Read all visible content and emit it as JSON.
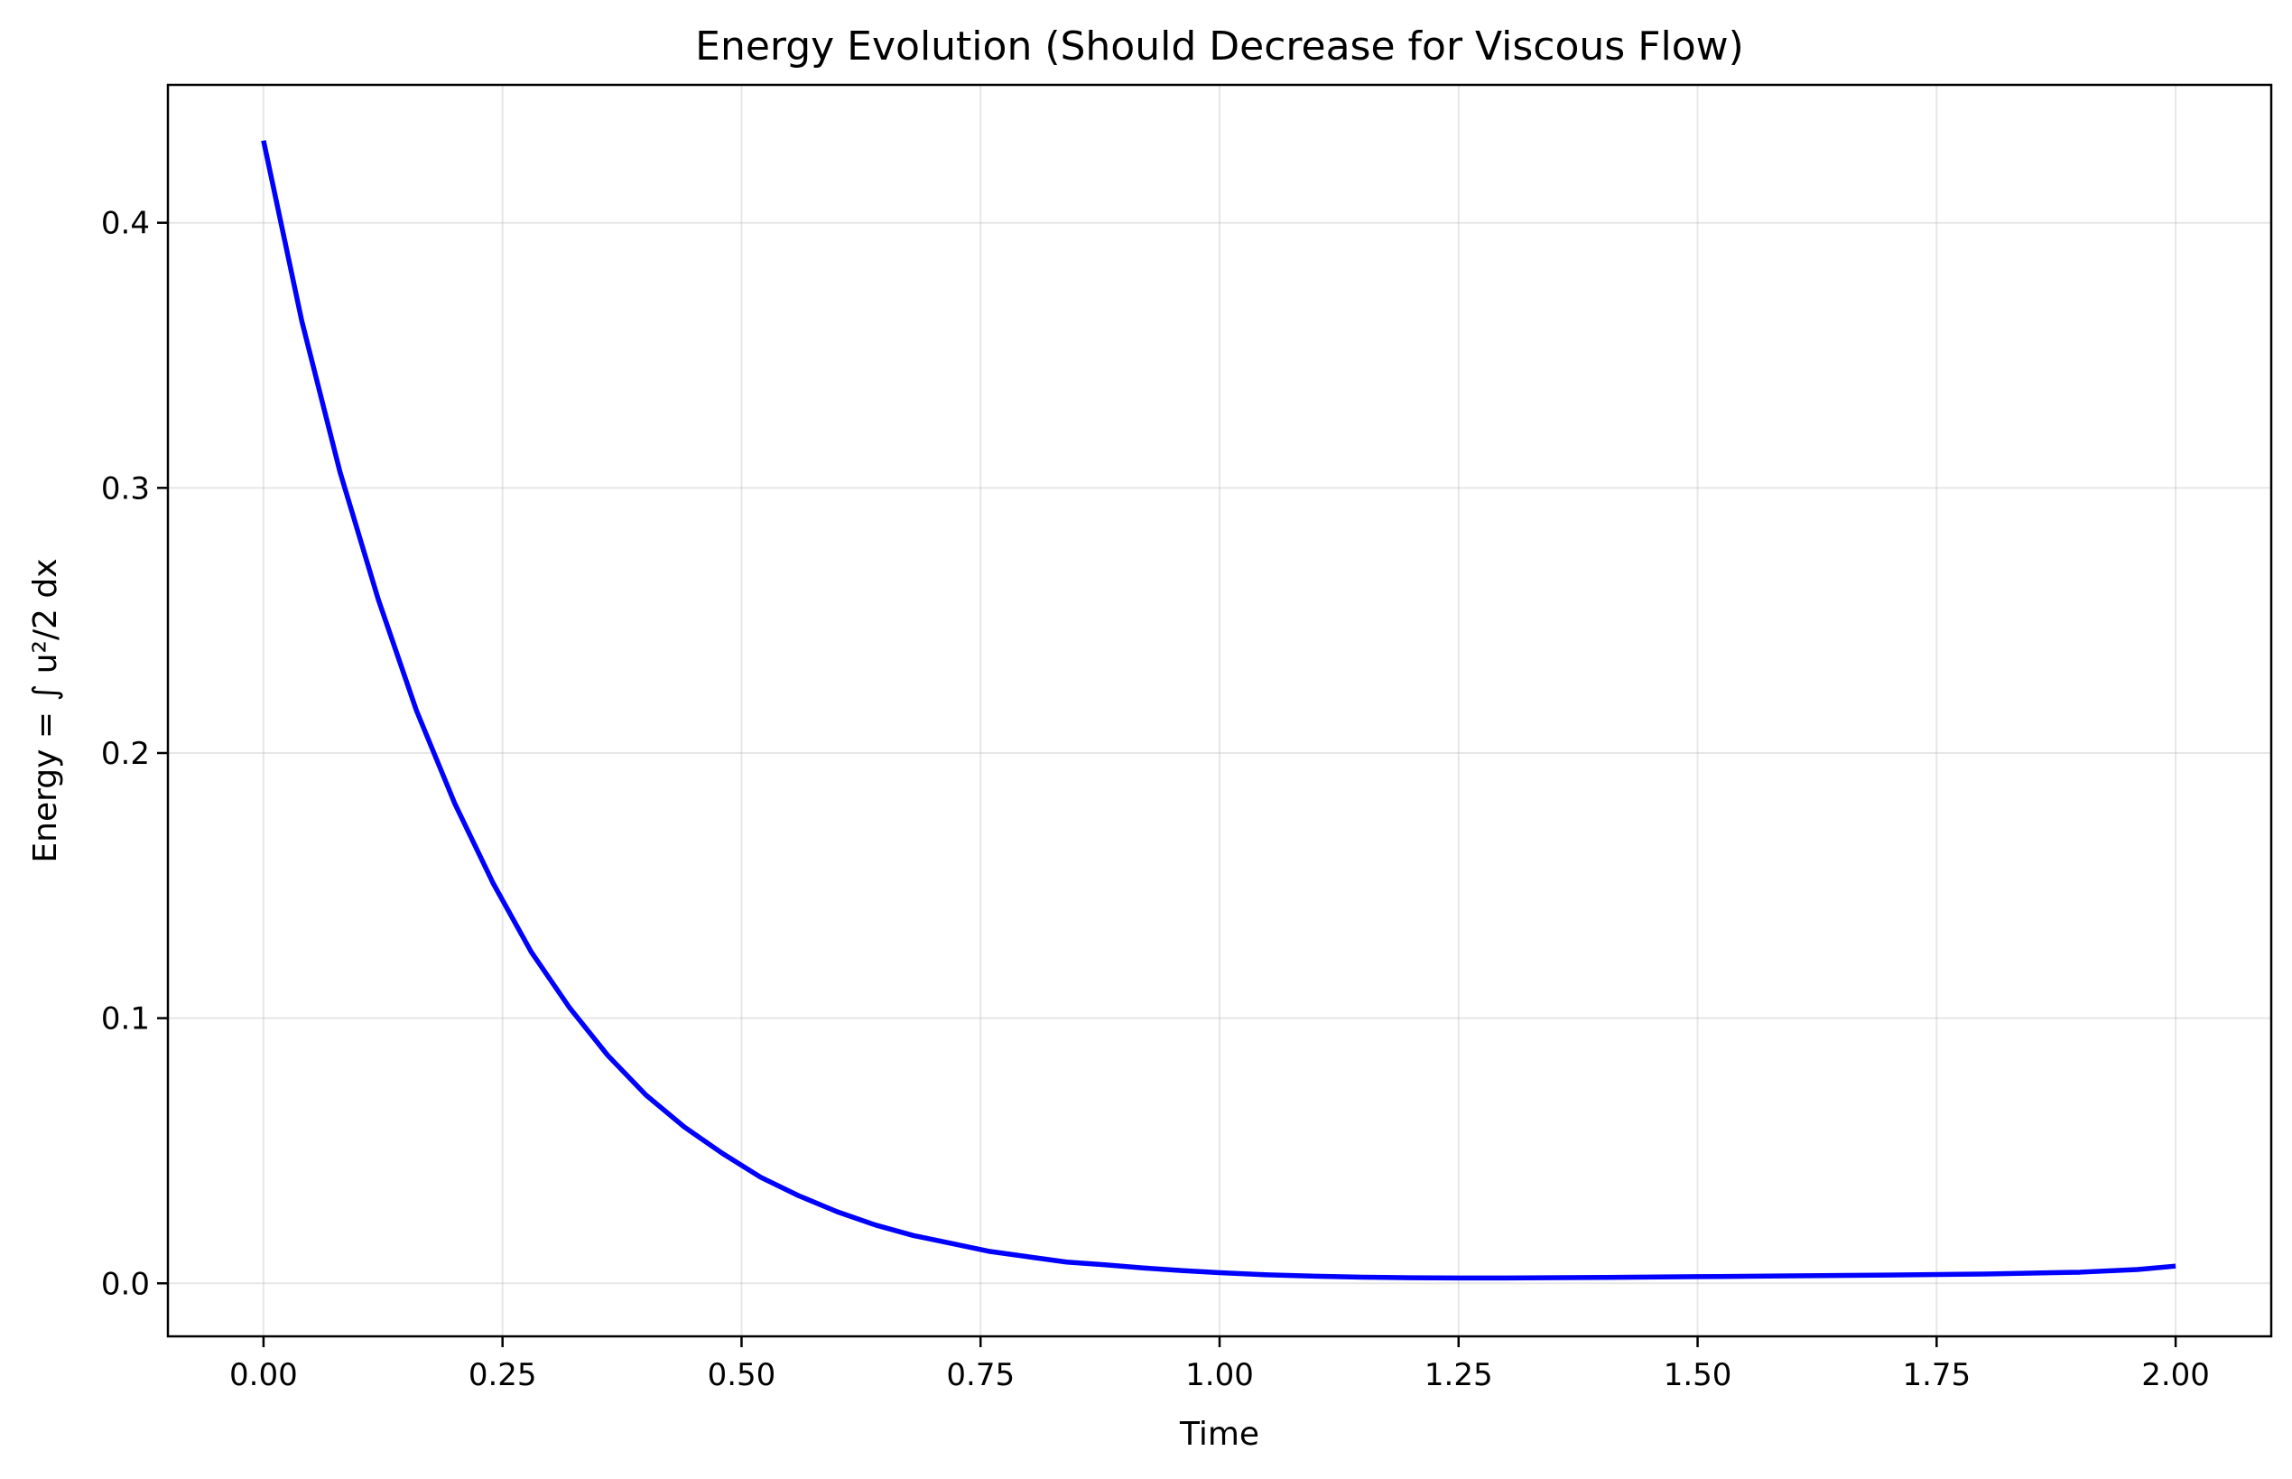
{
  "chart_data": {
    "type": "line",
    "title": "Energy Evolution (Should Decrease for Viscous Flow)",
    "xlabel": "Time",
    "ylabel": "Energy = ∫ u²/2 dx",
    "xlim": [
      -0.1,
      2.1
    ],
    "ylim": [
      -0.02,
      0.452
    ],
    "xticks": [
      0.0,
      0.25,
      0.5,
      0.75,
      1.0,
      1.25,
      1.5,
      1.75,
      2.0
    ],
    "xtick_labels": [
      "0.00",
      "0.25",
      "0.50",
      "0.75",
      "1.00",
      "1.25",
      "1.50",
      "1.75",
      "2.00"
    ],
    "yticks": [
      0.0,
      0.1,
      0.2,
      0.3,
      0.4
    ],
    "ytick_labels": [
      "0.0",
      "0.1",
      "0.2",
      "0.3",
      "0.4"
    ],
    "grid": true,
    "legend": false,
    "series": [
      {
        "color": "#0000ff",
        "x": [
          0.0,
          0.04,
          0.08,
          0.12,
          0.16,
          0.2,
          0.24,
          0.28,
          0.32,
          0.36,
          0.4,
          0.44,
          0.48,
          0.52,
          0.56,
          0.6,
          0.64,
          0.68,
          0.72,
          0.76,
          0.8,
          0.84,
          0.88,
          0.92,
          0.96,
          1.0,
          1.05,
          1.1,
          1.15,
          1.2,
          1.25,
          1.3,
          1.4,
          1.5,
          1.6,
          1.7,
          1.8,
          1.9,
          1.96,
          2.0
        ],
        "y": [
          0.431,
          0.363,
          0.306,
          0.258,
          0.216,
          0.181,
          0.151,
          0.125,
          0.104,
          0.086,
          0.071,
          0.059,
          0.049,
          0.04,
          0.033,
          0.027,
          0.022,
          0.018,
          0.015,
          0.012,
          0.01,
          0.008,
          0.007,
          0.0058,
          0.0048,
          0.004,
          0.0032,
          0.0027,
          0.0023,
          0.0021,
          0.002,
          0.002,
          0.0022,
          0.0025,
          0.0028,
          0.0031,
          0.0035,
          0.0042,
          0.0052,
          0.0065
        ]
      }
    ]
  }
}
